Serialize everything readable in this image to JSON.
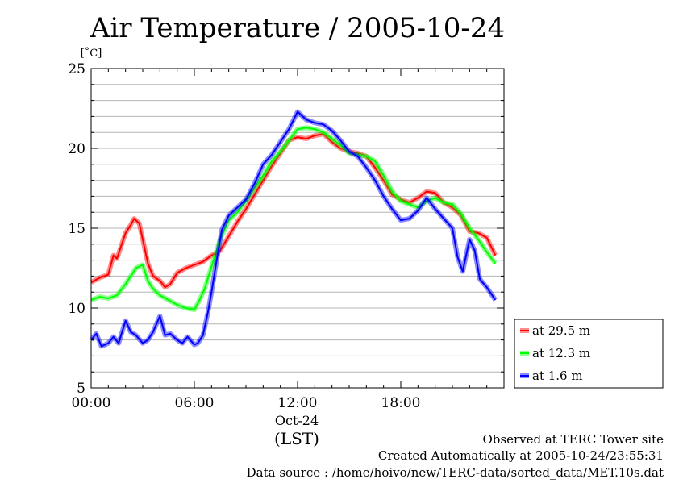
{
  "chart_data": {
    "type": "line",
    "title": "Air Temperature / 2005-10-24",
    "ylabel": "[˚C]",
    "xlabel": "(LST)",
    "x_date_label": "Oct-24",
    "ylim": [
      5,
      25
    ],
    "xlim": [
      0,
      24
    ],
    "yticks": [
      5,
      10,
      15,
      20,
      25
    ],
    "ytick_labels": [
      "5",
      "10",
      "15",
      "20",
      "25"
    ],
    "xticks": [
      0,
      6,
      12,
      18
    ],
    "xtick_labels": [
      "00:00",
      "06:00",
      "12:00",
      "18:00"
    ],
    "grid": "horizontal",
    "legend_position": "right",
    "x_unit": "hour",
    "series": [
      {
        "name": "at 29.5 m",
        "color": "#ff0000",
        "x": [
          0,
          0.5,
          1,
          1.3,
          1.5,
          2,
          2.3,
          2.5,
          2.8,
          3,
          3.3,
          3.6,
          4,
          4.3,
          4.6,
          5,
          5.5,
          6,
          6.5,
          7,
          7.5,
          8,
          8.5,
          9,
          9.5,
          10,
          10.5,
          11,
          11.5,
          12,
          12.5,
          13,
          13.5,
          14,
          14.5,
          15,
          15.5,
          16,
          16.5,
          17,
          17.5,
          18,
          18.5,
          19,
          19.5,
          20,
          20.5,
          21,
          21.5,
          22,
          22.5,
          23,
          23.5
        ],
        "y": [
          11.6,
          11.9,
          12.1,
          13.3,
          13.1,
          14.7,
          15.2,
          15.6,
          15.3,
          14.3,
          12.8,
          12.0,
          11.7,
          11.3,
          11.5,
          12.2,
          12.5,
          12.7,
          12.9,
          13.3,
          13.6,
          14.5,
          15.4,
          16.2,
          17.1,
          18.0,
          18.9,
          19.7,
          20.5,
          20.7,
          20.6,
          20.8,
          20.9,
          20.4,
          20.0,
          19.8,
          19.7,
          19.5,
          18.8,
          18.0,
          17.1,
          16.8,
          16.6,
          16.9,
          17.3,
          17.2,
          16.6,
          16.3,
          15.8,
          14.8,
          14.7,
          14.4,
          13.3
        ]
      },
      {
        "name": "at 12.3 m",
        "color": "#00ff00",
        "x": [
          0,
          0.5,
          1,
          1.5,
          2,
          2.3,
          2.6,
          3,
          3.3,
          3.6,
          4,
          4.5,
          5,
          5.5,
          6,
          6.3,
          6.6,
          7,
          7.5,
          8,
          8.5,
          9,
          9.5,
          10,
          10.5,
          11,
          11.5,
          12,
          12.5,
          13,
          13.5,
          14,
          14.5,
          15,
          15.5,
          16,
          16.5,
          17,
          17.5,
          18,
          18.5,
          19,
          19.5,
          20,
          20.5,
          21,
          21.5,
          22,
          22.5,
          23,
          23.5
        ],
        "y": [
          10.5,
          10.7,
          10.6,
          10.8,
          11.5,
          12.0,
          12.5,
          12.7,
          11.7,
          11.2,
          10.8,
          10.5,
          10.2,
          10.0,
          9.9,
          10.5,
          11.2,
          12.6,
          14.3,
          15.5,
          16.0,
          16.7,
          17.5,
          18.3,
          19.2,
          19.8,
          20.5,
          21.2,
          21.3,
          21.2,
          21.0,
          20.6,
          20.2,
          19.7,
          19.6,
          19.5,
          19.2,
          18.3,
          17.3,
          16.7,
          16.5,
          16.3,
          16.7,
          16.9,
          16.6,
          16.5,
          15.9,
          15.0,
          14.3,
          13.5,
          12.8
        ]
      },
      {
        "name": "at 1.6 m",
        "color": "#0000ff",
        "x": [
          0,
          0.3,
          0.6,
          1,
          1.3,
          1.6,
          2,
          2.3,
          2.6,
          3,
          3.3,
          3.6,
          4,
          4.3,
          4.6,
          5,
          5.3,
          5.6,
          6,
          6.2,
          6.5,
          6.8,
          7,
          7.3,
          7.6,
          8,
          8.5,
          9,
          9.5,
          10,
          10.5,
          11,
          11.5,
          12,
          12.5,
          13,
          13.5,
          14,
          14.5,
          15,
          15.5,
          16,
          16.5,
          17,
          17.5,
          18,
          18.5,
          19,
          19.5,
          20,
          20.5,
          21,
          21.3,
          21.6,
          22,
          22.3,
          22.6,
          23,
          23.5
        ],
        "y": [
          8.0,
          8.4,
          7.6,
          7.8,
          8.2,
          7.8,
          9.2,
          8.5,
          8.3,
          7.8,
          8.0,
          8.5,
          9.5,
          8.3,
          8.4,
          8.0,
          7.8,
          8.2,
          7.7,
          7.8,
          8.3,
          9.8,
          11.0,
          13.0,
          14.9,
          15.8,
          16.3,
          16.8,
          17.8,
          19.0,
          19.6,
          20.4,
          21.2,
          22.3,
          21.8,
          21.6,
          21.5,
          21.1,
          20.5,
          19.8,
          19.5,
          18.8,
          18.0,
          17.0,
          16.2,
          15.5,
          15.6,
          16.1,
          16.9,
          16.2,
          15.6,
          15.0,
          13.2,
          12.3,
          14.3,
          13.6,
          11.8,
          11.3,
          10.5
        ]
      }
    ]
  },
  "footer": {
    "line1": "Observed at TERC Tower site",
    "line2": "Created Automatically at 2005-10-24/23:55:31",
    "line3": "Data source : /home/hoivo/new/TERC-data/sorted_data/MET.10s.dat"
  }
}
